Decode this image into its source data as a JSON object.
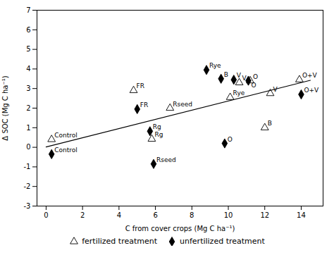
{
  "chart_data": {
    "type": "scatter",
    "xlabel": "C from cover crops (Mg C ha⁻¹)",
    "ylabel": "Δ SOC (Mg C ha⁻¹)",
    "xlim": [
      -0.5,
      15.2
    ],
    "ylim": [
      -3,
      7
    ],
    "xticks": [
      0,
      2,
      4,
      6,
      8,
      10,
      12,
      14
    ],
    "yticks": [
      -3,
      -2,
      -1,
      0,
      1,
      2,
      3,
      4,
      5,
      6,
      7
    ],
    "grid": false,
    "series": [
      {
        "name": "fertilized treatment",
        "type": "scatter",
        "marker": "triangle",
        "color": "#ffffff",
        "x": [
          0.3,
          4.8,
          6.8,
          5.8,
          10.1,
          10.6,
          11.2,
          12.3,
          13.9,
          12.0
        ],
        "values": [
          0.4,
          2.9,
          2.0,
          0.42,
          2.55,
          3.3,
          3.4,
          2.75,
          3.45,
          1.0
        ],
        "labels": [
          "Control",
          "FR",
          "Rseed",
          "Rg",
          "Rye",
          "V",
          "O",
          "V",
          "O+V",
          "B"
        ]
      },
      {
        "name": "unfertilized treatment",
        "type": "scatter",
        "marker": "diamond",
        "color": "#000000",
        "x": [
          0.3,
          5.0,
          5.7,
          5.9,
          8.8,
          9.6,
          9.8,
          10.3,
          11.1,
          14.0
        ],
        "values": [
          -0.35,
          1.95,
          0.82,
          -0.85,
          3.95,
          3.5,
          0.2,
          3.45,
          3.4,
          2.7
        ],
        "labels": [
          "Control",
          "FR",
          "Rg",
          "Rseed",
          "Rye",
          "B",
          "O",
          "V",
          "O",
          "O+V"
        ]
      },
      {
        "type": "line",
        "color": "#000000",
        "x": [
          0,
          14.5
        ],
        "values": [
          0.02,
          3.42
        ]
      }
    ]
  }
}
